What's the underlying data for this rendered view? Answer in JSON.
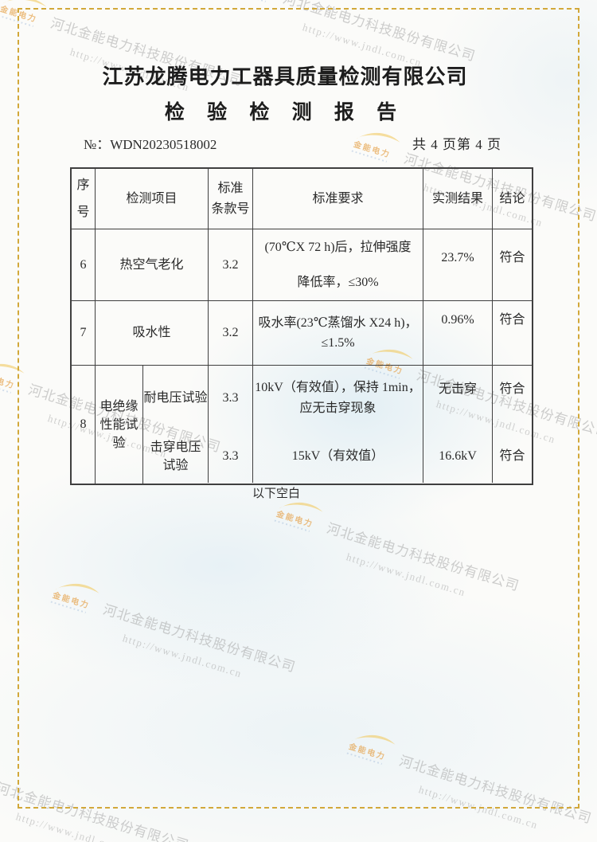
{
  "document": {
    "company_title": "江苏龙腾电力工器具质量检测有限公司",
    "report_title": "检 验 检 测 报 告",
    "report_no_label": "№：",
    "report_no": "WDN20230518002",
    "page_info": "共 4 页第 4 页",
    "footer_note": "以下空白"
  },
  "table": {
    "headers": {
      "no": "序号",
      "item": "检测项目",
      "clause_line1": "标准",
      "clause_line2": "条款号",
      "requirement": "标准要求",
      "result": "实测结果",
      "conclusion": "结论"
    },
    "rows": [
      {
        "no": "6",
        "item": "热空气老化",
        "clause": "3.2",
        "req1": "(70℃X 72 h)后，拉伸强度",
        "req2": "降低率，≤30%",
        "result": "23.7%",
        "conclusion": "符合"
      },
      {
        "no": "7",
        "item": "吸水性",
        "clause": "3.2",
        "req1": "吸水率(23℃蒸馏水 X24 h)，",
        "req2": "≤1.5%",
        "result": "0.96%",
        "conclusion": "符合"
      }
    ],
    "row8": {
      "no": "8",
      "group_item": "电绝缘性能试验",
      "sub1": {
        "name": "耐电压试验",
        "clause": "3.3",
        "req1": "10kV（有效值），保持 1min，",
        "req2": "应无击穿现象",
        "result": "无击穿",
        "conclusion": "符合"
      },
      "sub2": {
        "name": "击穿电压试验",
        "clause": "3.3",
        "req1": "15kV（有效值）",
        "result": "16.6kV",
        "conclusion": "符合"
      }
    }
  },
  "watermark": {
    "company": "河北金能电力科技股份有限公司",
    "url": "http://www.jndl.com.cn",
    "logo_text": "金能电力",
    "logo_icon": "jinneng-swoosh-icon",
    "colors": {
      "frame_border": "#d2a83a",
      "logo_yellow": "#f1c95f",
      "logo_orange": "#e49b3b",
      "watermark_gray": "#9f9f9f"
    }
  }
}
